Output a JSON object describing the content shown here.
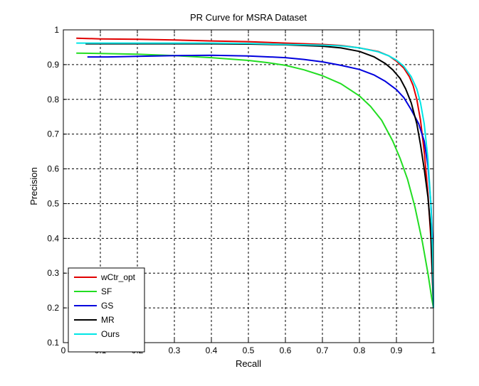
{
  "chart_data": {
    "type": "line",
    "title": "PR Curve for MSRA Dataset",
    "xlabel": "Recall",
    "ylabel": "Precision",
    "xlim": [
      0,
      1
    ],
    "ylim": [
      0.1,
      1
    ],
    "xticks": [
      "0",
      "0.1",
      "0.2",
      "0.3",
      "0.4",
      "0.5",
      "0.6",
      "0.7",
      "0.8",
      "0.9",
      "1"
    ],
    "yticks": [
      "0.1",
      "0.2",
      "0.3",
      "0.4",
      "0.5",
      "0.6",
      "0.7",
      "0.8",
      "0.9",
      "1"
    ],
    "grid": true,
    "legend_position": "bottom-left",
    "series": [
      {
        "name": "wCtr_opt",
        "color": "#e00000",
        "points": [
          [
            0.035,
            0.976
          ],
          [
            0.1,
            0.974
          ],
          [
            0.2,
            0.973
          ],
          [
            0.3,
            0.971
          ],
          [
            0.4,
            0.968
          ],
          [
            0.5,
            0.966
          ],
          [
            0.6,
            0.962
          ],
          [
            0.7,
            0.958
          ],
          [
            0.75,
            0.955
          ],
          [
            0.8,
            0.948
          ],
          [
            0.85,
            0.938
          ],
          [
            0.88,
            0.925
          ],
          [
            0.9,
            0.91
          ],
          [
            0.92,
            0.89
          ],
          [
            0.935,
            0.865
          ],
          [
            0.945,
            0.84
          ],
          [
            0.955,
            0.8
          ],
          [
            0.965,
            0.74
          ],
          [
            0.975,
            0.65
          ],
          [
            0.985,
            0.53
          ],
          [
            0.993,
            0.4
          ],
          [
            1.0,
            0.2
          ]
        ]
      },
      {
        "name": "SF",
        "color": "#22dd22",
        "points": [
          [
            0.035,
            0.933
          ],
          [
            0.1,
            0.932
          ],
          [
            0.2,
            0.93
          ],
          [
            0.3,
            0.926
          ],
          [
            0.4,
            0.92
          ],
          [
            0.5,
            0.912
          ],
          [
            0.55,
            0.906
          ],
          [
            0.6,
            0.898
          ],
          [
            0.65,
            0.885
          ],
          [
            0.7,
            0.868
          ],
          [
            0.75,
            0.845
          ],
          [
            0.8,
            0.81
          ],
          [
            0.83,
            0.78
          ],
          [
            0.86,
            0.74
          ],
          [
            0.89,
            0.68
          ],
          [
            0.91,
            0.63
          ],
          [
            0.93,
            0.57
          ],
          [
            0.95,
            0.49
          ],
          [
            0.97,
            0.39
          ],
          [
            0.985,
            0.3
          ],
          [
            0.995,
            0.23
          ],
          [
            1.0,
            0.2
          ]
        ]
      },
      {
        "name": "GS",
        "color": "#0000dd",
        "points": [
          [
            0.065,
            0.922
          ],
          [
            0.12,
            0.922
          ],
          [
            0.2,
            0.924
          ],
          [
            0.3,
            0.926
          ],
          [
            0.4,
            0.927
          ],
          [
            0.5,
            0.925
          ],
          [
            0.6,
            0.92
          ],
          [
            0.65,
            0.915
          ],
          [
            0.7,
            0.908
          ],
          [
            0.75,
            0.898
          ],
          [
            0.8,
            0.886
          ],
          [
            0.84,
            0.87
          ],
          [
            0.87,
            0.852
          ],
          [
            0.9,
            0.828
          ],
          [
            0.92,
            0.805
          ],
          [
            0.94,
            0.77
          ],
          [
            0.96,
            0.73
          ],
          [
            0.975,
            0.68
          ],
          [
            0.985,
            0.61
          ],
          [
            0.993,
            0.5
          ],
          [
            0.998,
            0.38
          ],
          [
            1.0,
            0.2
          ]
        ]
      },
      {
        "name": "MR",
        "color": "#000000",
        "points": [
          [
            0.06,
            0.96
          ],
          [
            0.1,
            0.96
          ],
          [
            0.2,
            0.96
          ],
          [
            0.3,
            0.96
          ],
          [
            0.4,
            0.96
          ],
          [
            0.5,
            0.959
          ],
          [
            0.6,
            0.957
          ],
          [
            0.7,
            0.953
          ],
          [
            0.75,
            0.948
          ],
          [
            0.8,
            0.938
          ],
          [
            0.84,
            0.922
          ],
          [
            0.87,
            0.903
          ],
          [
            0.89,
            0.885
          ],
          [
            0.91,
            0.86
          ],
          [
            0.925,
            0.83
          ],
          [
            0.94,
            0.79
          ],
          [
            0.955,
            0.73
          ],
          [
            0.965,
            0.67
          ],
          [
            0.975,
            0.6
          ],
          [
            0.985,
            0.52
          ],
          [
            0.993,
            0.42
          ],
          [
            1.0,
            0.2
          ]
        ]
      },
      {
        "name": "Ours",
        "color": "#00e6e6",
        "points": [
          [
            0.035,
            0.962
          ],
          [
            0.1,
            0.962
          ],
          [
            0.2,
            0.962
          ],
          [
            0.3,
            0.962
          ],
          [
            0.4,
            0.962
          ],
          [
            0.5,
            0.961
          ],
          [
            0.6,
            0.958
          ],
          [
            0.7,
            0.956
          ],
          [
            0.75,
            0.954
          ],
          [
            0.8,
            0.948
          ],
          [
            0.85,
            0.937
          ],
          [
            0.88,
            0.925
          ],
          [
            0.9,
            0.913
          ],
          [
            0.92,
            0.895
          ],
          [
            0.94,
            0.865
          ],
          [
            0.955,
            0.83
          ],
          [
            0.965,
            0.79
          ],
          [
            0.975,
            0.73
          ],
          [
            0.985,
            0.63
          ],
          [
            0.993,
            0.5
          ],
          [
            0.998,
            0.35
          ],
          [
            1.0,
            0.2
          ]
        ]
      }
    ]
  }
}
